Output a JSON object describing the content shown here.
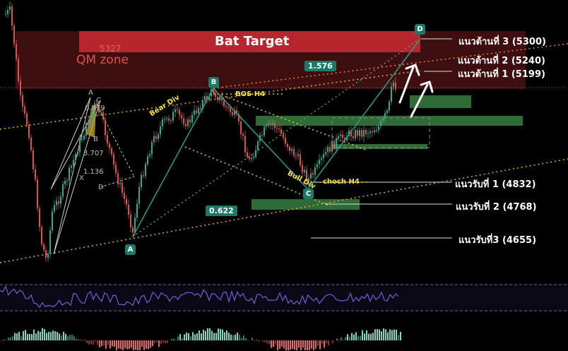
{
  "zones": {
    "bat_target": "Bat Target",
    "qm_zone": "QM zone",
    "qm_level": "5327"
  },
  "levels": {
    "r3": "แนวต้านที่  3 (5300)",
    "r2": "แนวต้านที่ 2 (5240)",
    "r1": "แนวต้านที่  1 (5199)",
    "s1": "แนวรับที่ 1 (4832)",
    "s2": "แนวรับที่ 2 (4768)",
    "s3": "แนวรับที่3 (4655)"
  },
  "points": {
    "A": "A",
    "B": "B",
    "C": "C",
    "D": "D"
  },
  "fib": {
    "bc": "1.576",
    "ab": "0.622"
  },
  "annotations": {
    "bos": "BOS H4",
    "bear_div": "Bear Div",
    "bull_div": "Bull Div",
    "choch": "choch H4"
  },
  "harmonic": {
    "a": "A",
    "c": "C",
    "b": "B",
    "d": "D",
    "x": "X",
    "r1": "0.879",
    "r2": "3.707",
    "r3": "1.136"
  },
  "colors": {
    "background": "#000000",
    "bull_candle": "#3da68c",
    "bear_candle": "#d9534f",
    "bat_zone": "#b5262e",
    "qm_zone": "#4a1014",
    "demand_zone": "#2e6b37",
    "pattern_line": "#2a9d8f",
    "trend_dotted": "#e0b325",
    "rsi_line": "#7a5cd6"
  },
  "chart_data": {
    "type": "candlestick",
    "price_levels": {
      "resistance": [
        5300,
        5240,
        5199
      ],
      "support": [
        4832,
        4768,
        4655
      ],
      "qm_zone": 5327
    },
    "pattern": "Bat",
    "points": [
      "A",
      "B",
      "C",
      "D"
    ],
    "ratios": {
      "bc": 1.576,
      "ab": 0.622
    },
    "indicators": [
      "RSI",
      "MACD histogram"
    ]
  }
}
